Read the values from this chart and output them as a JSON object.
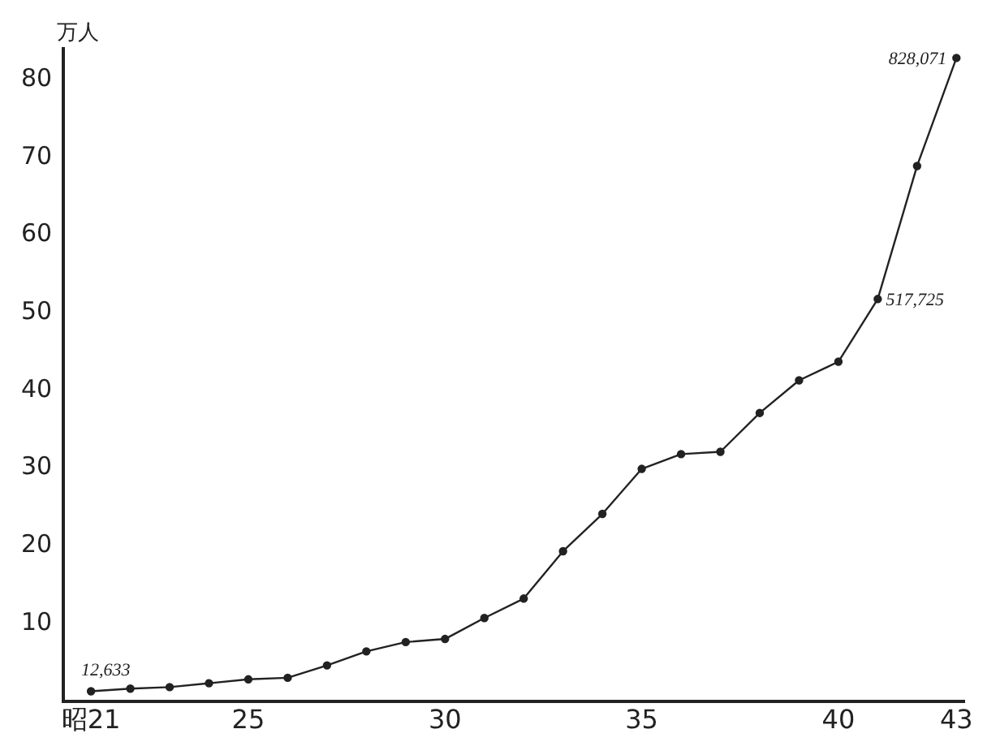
{
  "chart_data": {
    "type": "line",
    "ylabel": "万人",
    "x": [
      21,
      22,
      23,
      24,
      25,
      26,
      27,
      28,
      29,
      30,
      31,
      32,
      33,
      34,
      35,
      36,
      37,
      38,
      39,
      40,
      41,
      42,
      43
    ],
    "series": [
      {
        "color": "#222222",
        "values": [
          1.2633,
          1.6,
          1.8,
          2.3,
          2.8,
          3.0,
          4.6,
          6.4,
          7.6,
          8.0,
          10.7,
          13.2,
          19.3,
          24.1,
          29.9,
          31.8,
          32.1,
          37.1,
          41.3,
          43.7,
          51.7725,
          68.9,
          82.8071
        ]
      }
    ],
    "xlim": [
      20.3,
      43.2
    ],
    "xticks": [
      {
        "value": 21,
        "label": "昭21"
      },
      25,
      30,
      35,
      40,
      43
    ],
    "ylim": [
      0,
      84
    ],
    "yticks": [
      10,
      20,
      30,
      40,
      50,
      60,
      70,
      80
    ],
    "annotations": [
      {
        "text": "12,633",
        "x": 21,
        "y": 1.2633
      },
      {
        "text": "517,725",
        "x": 41,
        "y": 51.7725
      },
      {
        "text": "828,071",
        "x": 43,
        "y": 82.8071
      }
    ],
    "grid": false,
    "legend": false,
    "marker": "circle",
    "line_style": "solid"
  }
}
